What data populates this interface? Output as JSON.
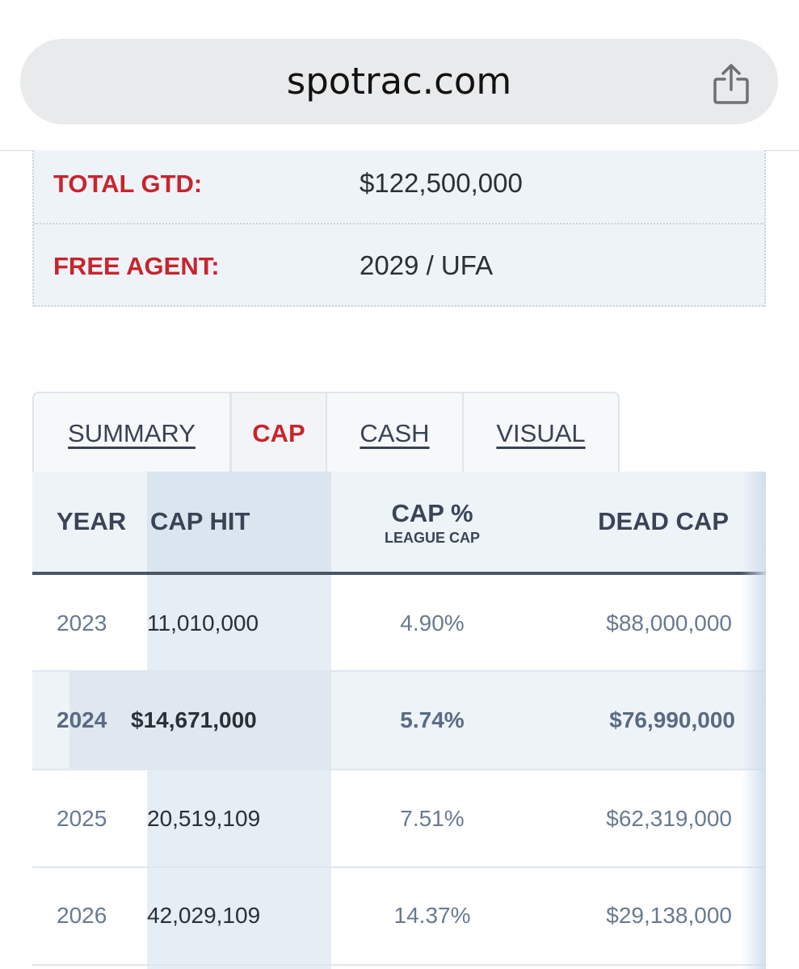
{
  "browser": {
    "url": "spotrac.com",
    "share_icon": "share-icon"
  },
  "info": [
    {
      "label": "TOTAL GTD:",
      "value": "$122,500,000"
    },
    {
      "label": "FREE AGENT:",
      "value": "2029 / UFA"
    }
  ],
  "tabs": [
    {
      "label": "SUMMARY",
      "active": false
    },
    {
      "label": "CAP",
      "active": true
    },
    {
      "label": "CASH",
      "active": false
    },
    {
      "label": "VISUAL",
      "active": false
    }
  ],
  "table": {
    "headers": {
      "year": "YEAR",
      "cap_hit": "CAP HIT",
      "cap_pct": "CAP %",
      "cap_pct_sub": "LEAGUE CAP",
      "dead_cap": "DEAD CAP"
    },
    "rows": [
      {
        "year": "2023",
        "cap_hit": "11,010,000",
        "cap_pct": "4.90%",
        "dead_cap": "$88,000,000",
        "highlight": false
      },
      {
        "year": "2024",
        "cap_hit": "$14,671,000",
        "cap_pct": "5.74%",
        "dead_cap": "$76,990,000",
        "highlight": true
      },
      {
        "year": "2025",
        "cap_hit": "20,519,109",
        "cap_pct": "7.51%",
        "dead_cap": "$62,319,000",
        "highlight": false
      },
      {
        "year": "2026",
        "cap_hit": "42,029,109",
        "cap_pct": "14.37%",
        "dead_cap": "$29,138,000",
        "highlight": false
      }
    ]
  },
  "colors": {
    "accent_red": "#c8242d",
    "header_text": "#3a4456",
    "body_text": "#6b7a90"
  }
}
